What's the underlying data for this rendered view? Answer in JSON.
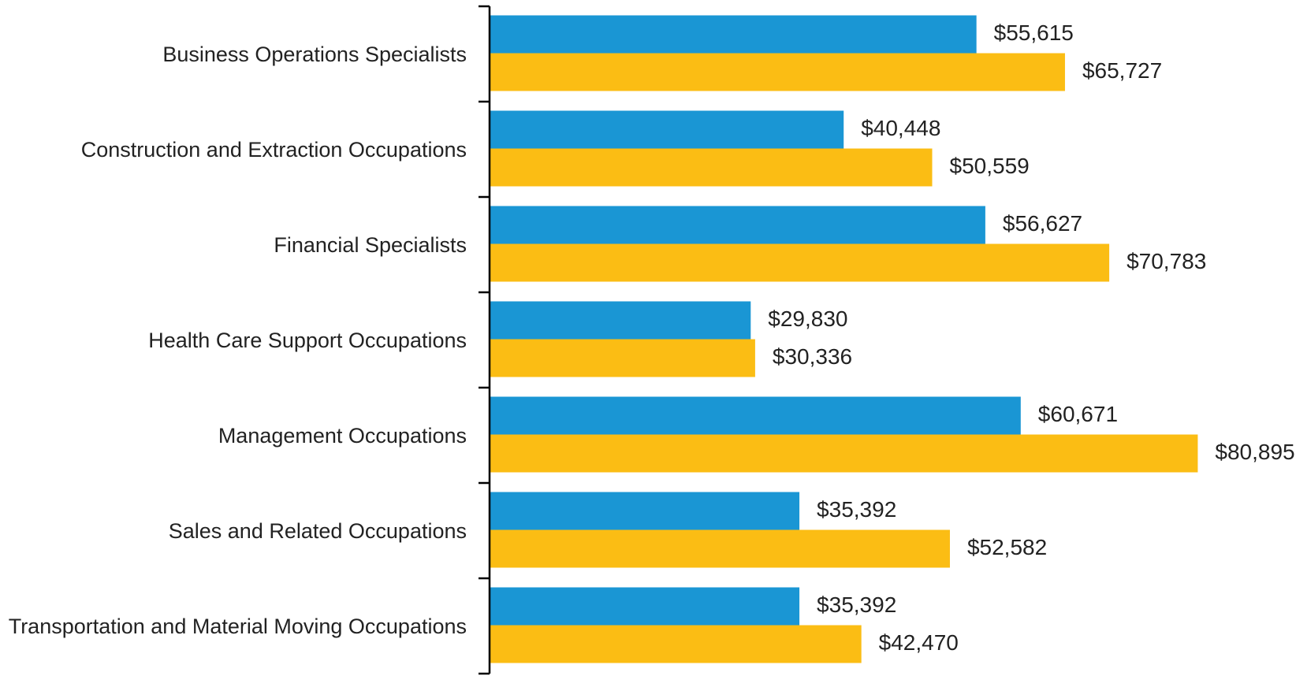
{
  "chart_data": {
    "type": "bar",
    "orientation": "horizontal",
    "categories": [
      "Business Operations Specialists",
      "Construction and Extraction Occupations",
      "Financial Specialists",
      "Health Care Support Occupations",
      "Management Occupations",
      "Sales and Related Occupations",
      "Transportation and Material Moving Occupations"
    ],
    "series": [
      {
        "color": "#1a96d4",
        "values": [
          55615,
          40448,
          56627,
          29830,
          60671,
          35392,
          35392
        ],
        "value_labels": [
          "$55,615",
          "$40,448",
          "$56,627",
          "$29,830",
          "$60,671",
          "$35,392",
          "$35,392"
        ]
      },
      {
        "color": "#fbbd14",
        "values": [
          65727,
          50559,
          70783,
          30336,
          80895,
          52582,
          42470
        ],
        "value_labels": [
          "$65,727",
          "$50,559",
          "$70,783",
          "$30,336",
          "$80,895",
          "$52,582",
          "$42,470"
        ]
      }
    ],
    "xlim": [
      0,
      85000
    ]
  }
}
